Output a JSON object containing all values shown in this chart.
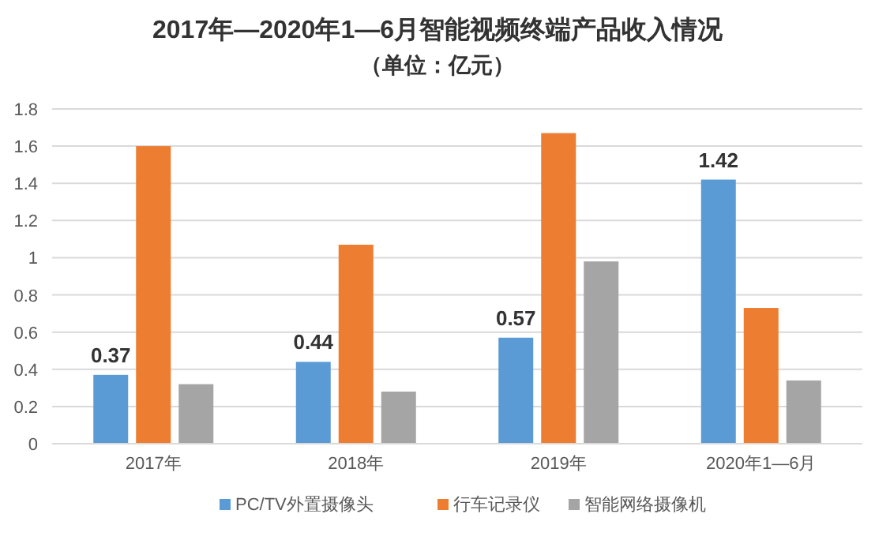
{
  "chart_data": {
    "type": "bar",
    "title": "2017年—2020年1—6月智能视频终端产品收入情况",
    "subtitle": "（单位：亿元）",
    "categories": [
      "2017年",
      "2018年",
      "2019年",
      "2020年1—6月"
    ],
    "series": [
      {
        "name": "PC/TV外置摄像头",
        "color": "#5b9bd5",
        "values": [
          0.37,
          0.44,
          0.57,
          1.42
        ],
        "value_labels": [
          "0.37",
          "0.44",
          "0.57",
          "1.42"
        ]
      },
      {
        "name": "行车记录仪",
        "color": "#ed7d31",
        "values": [
          1.6,
          1.07,
          1.67,
          0.73
        ]
      },
      {
        "name": "智能网络摄像机",
        "color": "#a5a5a5",
        "values": [
          0.32,
          0.28,
          0.98,
          0.34
        ]
      }
    ],
    "ylim": [
      0,
      1.8
    ],
    "yticks": [
      0,
      0.2,
      0.4,
      0.6,
      0.8,
      1,
      1.2,
      1.4,
      1.6,
      1.8
    ],
    "grid": "y",
    "legend": "bottom"
  }
}
